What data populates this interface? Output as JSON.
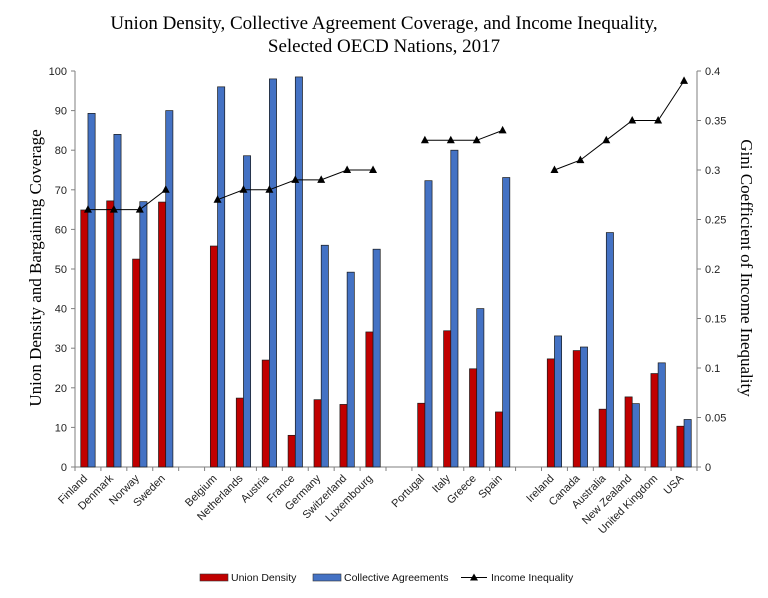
{
  "chart_data": {
    "type": "bar",
    "title_lines": [
      "Union Density, Collective Agreement Coverage, and Income Inequality,",
      "Selected OECD Nations, 2017"
    ],
    "ylabel_left": "Union Density and Bargaining Coverage",
    "ylabel_right": "Gini Coefficient of Income Inequality",
    "ylim_left": [
      0,
      100
    ],
    "ylim_right": [
      0,
      0.4
    ],
    "yticks_left": [
      "0",
      "10",
      "20",
      "30",
      "40",
      "50",
      "60",
      "70",
      "80",
      "90",
      "100"
    ],
    "yticks_right": [
      "0",
      "0.05",
      "0.1",
      "0.15",
      "0.2",
      "0.25",
      "0.3",
      "0.35",
      "0.4"
    ],
    "grid": false,
    "legend_position": "bottom",
    "groups": [
      {
        "countries": [
          "Finland",
          "Denmark",
          "Norway",
          "Sweden"
        ],
        "union_density": [
          64.9,
          67.2,
          52.5,
          66.9
        ],
        "collective_agreements": [
          89.3,
          84.0,
          67.0,
          90.0
        ],
        "income_inequality": [
          0.26,
          0.26,
          0.26,
          0.28
        ]
      },
      {
        "countries": [
          "Belgium",
          "Netherlands",
          "Austria",
          "France",
          "Germany",
          "Switzerland",
          "Luxembourg"
        ],
        "union_density": [
          55.8,
          17.4,
          27.0,
          8.0,
          17.0,
          15.8,
          34.1
        ],
        "collective_agreements": [
          96.0,
          78.6,
          98.0,
          98.5,
          56.0,
          49.2,
          55.0
        ],
        "income_inequality": [
          0.27,
          0.28,
          0.28,
          0.29,
          0.29,
          0.3,
          0.3
        ]
      },
      {
        "countries": [
          "Portugal",
          "Italy",
          "Greece",
          "Spain"
        ],
        "union_density": [
          16.1,
          34.4,
          24.8,
          13.9
        ],
        "collective_agreements": [
          72.3,
          80.0,
          40.0,
          73.1
        ],
        "income_inequality": [
          0.33,
          0.33,
          0.33,
          0.34
        ]
      },
      {
        "countries": [
          "Ireland",
          "Canada",
          "Australia",
          "New Zealand",
          "United Kingdom",
          "USA"
        ],
        "union_density": [
          27.3,
          29.4,
          14.6,
          17.7,
          23.6,
          10.3
        ],
        "collective_agreements": [
          33.1,
          30.3,
          59.2,
          16.0,
          26.3,
          12.0
        ],
        "income_inequality": [
          0.3,
          0.31,
          0.33,
          0.35,
          0.35,
          0.39
        ]
      }
    ],
    "series": [
      {
        "name": "Union Density",
        "color": "#C00000",
        "axis": "left",
        "key": "union_density"
      },
      {
        "name": "Collective Agreements",
        "color": "#4472C4",
        "axis": "left",
        "key": "collective_agreements"
      },
      {
        "name": "Income Inequality",
        "color": "#000000",
        "axis": "right",
        "key": "income_inequality"
      }
    ]
  }
}
